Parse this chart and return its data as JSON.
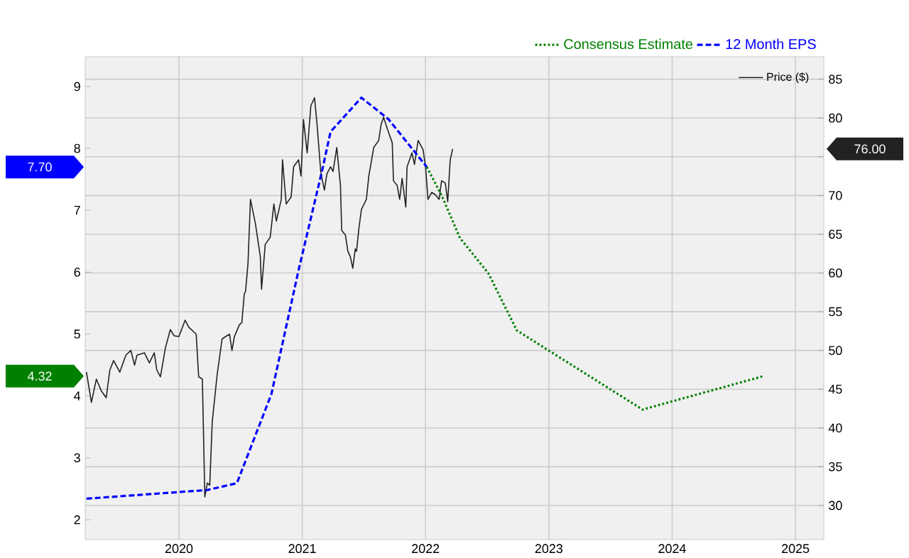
{
  "chart_data": {
    "type": "line",
    "xlim": [
      2019.24,
      2025.23
    ],
    "xticks": [
      2020,
      2021,
      2022,
      2023,
      2024,
      2025
    ],
    "ylim": [
      1.68,
      9.48
    ],
    "yticks": [
      2,
      3,
      4,
      5,
      6,
      7,
      8,
      9
    ],
    "y2lim": [
      25.6,
      87.9
    ],
    "y2ticks": [
      30,
      35,
      40,
      45,
      50,
      55,
      60,
      65,
      70,
      {
        "value": 75,
        "label": null
      },
      80,
      85
    ],
    "grid": true,
    "legend": "top right",
    "series": [
      {
        "name": "12 Month EPS",
        "color": "#0000ff",
        "line_style": "dashed",
        "x": [
          2019.25,
          2020.23,
          2020.47,
          2020.75,
          2020.97,
          2021.16,
          2021.23,
          2021.48,
          2021.7,
          2022.01
        ],
        "values": [
          2.34,
          2.48,
          2.59,
          4.03,
          6.03,
          7.63,
          8.27,
          8.82,
          8.47,
          7.7
        ]
      },
      {
        "name": "Consensus Estimate",
        "color": "#008000",
        "line_style": "dotted",
        "x": [
          2022.01,
          2022.13,
          2022.28,
          2022.51,
          2022.74,
          2023.01,
          2023.76,
          2024.74
        ],
        "values": [
          7.7,
          7.24,
          6.55,
          5.98,
          5.06,
          4.72,
          3.78,
          4.32
        ]
      },
      {
        "name": "Price ($)",
        "color": "#222222",
        "line_style": "solid",
        "axis": "y2",
        "x": [
          2019.25,
          2019.29,
          2019.33,
          2019.37,
          2019.41,
          2019.44,
          2019.47,
          2019.52,
          2019.57,
          2019.61,
          2019.64,
          2019.66,
          2019.72,
          2019.76,
          2019.8,
          2019.82,
          2019.85,
          2019.89,
          2019.93,
          2019.96,
          2020.0,
          2020.05,
          2020.08,
          2020.14,
          2020.16,
          2020.19,
          2020.21,
          2020.23,
          2020.25,
          2020.27,
          2020.31,
          2020.35,
          2020.41,
          2020.43,
          2020.45,
          2020.49,
          2020.51,
          2020.53,
          2020.54,
          2020.56,
          2020.58,
          2020.62,
          2020.66,
          2020.67,
          2020.7,
          2020.74,
          2020.77,
          2020.79,
          2020.83,
          2020.84,
          2020.87,
          2020.91,
          2020.93,
          2020.97,
          2020.99,
          2021.01,
          2021.04,
          2021.07,
          2021.1,
          2021.12,
          2021.15,
          2021.16,
          2021.18,
          2021.2,
          2021.23,
          2021.25,
          2021.28,
          2021.31,
          2021.32,
          2021.35,
          2021.37,
          2021.39,
          2021.41,
          2021.43,
          2021.44,
          2021.46,
          2021.48,
          2021.52,
          2021.54,
          2021.58,
          2021.62,
          2021.64,
          2021.66,
          2021.69,
          2021.73,
          2021.74,
          2021.77,
          2021.79,
          2021.81,
          2021.84,
          2021.85,
          2021.89,
          2021.91,
          2021.94,
          2021.98,
          2022.0,
          2022.02,
          2022.05,
          2022.08,
          2022.11,
          2022.13,
          2022.16,
          2022.18,
          2022.2,
          2022.22
        ],
        "values": [
          47.2,
          43.3,
          46.3,
          44.8,
          43.9,
          47.5,
          48.7,
          47.2,
          49.4,
          50.0,
          48.1,
          49.4,
          49.7,
          48.4,
          49.7,
          47.5,
          46.6,
          50.3,
          52.7,
          51.9,
          51.8,
          53.9,
          53.0,
          52.1,
          46.6,
          46.3,
          31.1,
          32.9,
          32.6,
          40.8,
          46.9,
          51.5,
          52.1,
          50.0,
          51.8,
          53.3,
          53.6,
          57.3,
          57.6,
          61.2,
          69.5,
          66.4,
          62.1,
          57.9,
          63.7,
          64.6,
          68.9,
          66.7,
          69.5,
          74.6,
          68.9,
          69.8,
          73.7,
          74.6,
          72.5,
          79.8,
          75.5,
          81.6,
          82.6,
          79.2,
          73.1,
          72.2,
          70.7,
          72.8,
          73.7,
          73.1,
          76.2,
          71.3,
          65.5,
          64.9,
          62.8,
          62.1,
          60.6,
          63.1,
          62.8,
          65.8,
          68.2,
          69.5,
          72.5,
          76.2,
          77.1,
          79.2,
          80.1,
          78.6,
          76.8,
          71.9,
          71.3,
          69.5,
          72.2,
          68.5,
          73.7,
          75.5,
          74.0,
          77.1,
          75.9,
          73.7,
          69.5,
          70.4,
          70.1,
          69.5,
          71.9,
          71.6,
          69.2,
          74.6,
          76.0
        ]
      }
    ],
    "annotations": [
      "7.70",
      "4.32",
      "76.00"
    ]
  }
}
